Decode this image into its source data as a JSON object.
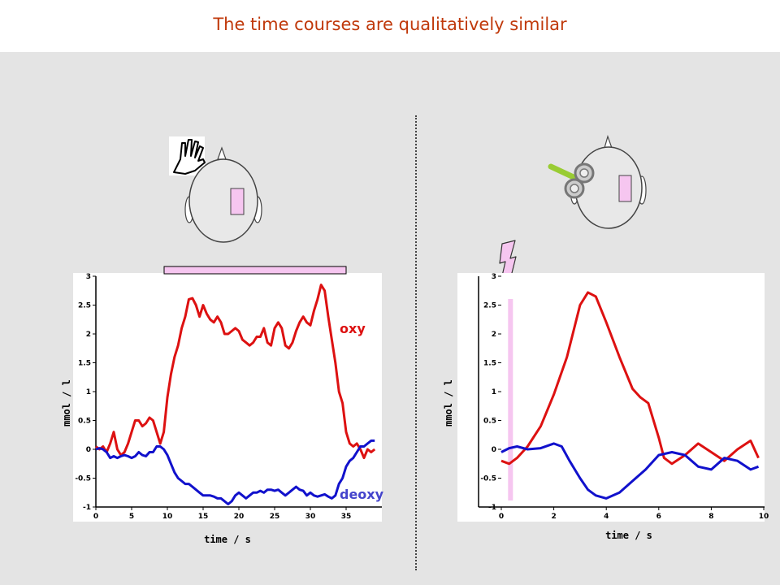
{
  "slide": {
    "title": "The time courses are qualitatively similar"
  },
  "colors": {
    "oxy": "#dd1111",
    "deoxy": "#1111cc",
    "stimulus": "#f6c6f0",
    "title": "#c0390b"
  },
  "icons": {
    "left": [
      "hand-icon",
      "head-icon",
      "brain-region-marker-icon"
    ],
    "right": [
      "tms-coil-icon",
      "head-icon",
      "brain-region-marker-icon",
      "lightning-icon"
    ]
  },
  "chart_data": [
    {
      "type": "line",
      "title": "",
      "xlabel": "time / s",
      "ylabel": "mmol / l",
      "xlim": [
        0,
        40
      ],
      "ylim": [
        -1,
        3
      ],
      "xticks": [
        0,
        5,
        10,
        15,
        20,
        25,
        30,
        35
      ],
      "yticks": [
        -1,
        -0.5,
        0,
        0.5,
        1,
        1.5,
        2,
        2.5,
        3
      ],
      "stimulus_interval": [
        10,
        35
      ],
      "series": [
        {
          "name": "oxy",
          "x": [
            0,
            0.5,
            1,
            1.5,
            2,
            2.5,
            3,
            3.5,
            4,
            4.5,
            5,
            5.5,
            6,
            6.5,
            7,
            7.5,
            8,
            8.5,
            9,
            9.5,
            10,
            10.5,
            11,
            11.5,
            12,
            12.5,
            13,
            13.5,
            14,
            14.5,
            15,
            15.5,
            16,
            16.5,
            17,
            17.5,
            18,
            18.5,
            19,
            19.5,
            20,
            20.5,
            21,
            21.5,
            22,
            22.5,
            23,
            23.5,
            24,
            24.5,
            25,
            25.5,
            26,
            26.5,
            27,
            27.5,
            28,
            28.5,
            29,
            29.5,
            30,
            30.5,
            31,
            31.5,
            32,
            32.5,
            33,
            33.5,
            34,
            34.5,
            35,
            35.5,
            36,
            36.5,
            37,
            37.5,
            38,
            38.5,
            39
          ],
          "values": [
            0.05,
            0.0,
            0.05,
            -0.05,
            0.1,
            0.3,
            0.0,
            -0.1,
            -0.05,
            0.1,
            0.3,
            0.5,
            0.5,
            0.4,
            0.45,
            0.55,
            0.5,
            0.3,
            0.1,
            0.3,
            0.9,
            1.3,
            1.6,
            1.8,
            2.1,
            2.3,
            2.6,
            2.62,
            2.5,
            2.3,
            2.5,
            2.35,
            2.25,
            2.2,
            2.3,
            2.2,
            2.0,
            2.0,
            2.05,
            2.1,
            2.05,
            1.9,
            1.85,
            1.8,
            1.85,
            1.95,
            1.95,
            2.1,
            1.85,
            1.8,
            2.1,
            2.2,
            2.1,
            1.8,
            1.75,
            1.85,
            2.05,
            2.2,
            2.3,
            2.2,
            2.15,
            2.4,
            2.6,
            2.85,
            2.75,
            2.3,
            1.9,
            1.5,
            1.0,
            0.8,
            0.3,
            0.1,
            0.05,
            0.1,
            0.0,
            -0.15,
            0.0,
            -0.05,
            0.0
          ]
        },
        {
          "name": "deoxy",
          "x": [
            0,
            0.5,
            1,
            1.5,
            2,
            2.5,
            3,
            3.5,
            4,
            4.5,
            5,
            5.5,
            6,
            6.5,
            7,
            7.5,
            8,
            8.5,
            9,
            9.5,
            10,
            10.5,
            11,
            11.5,
            12,
            12.5,
            13,
            13.5,
            14,
            14.5,
            15,
            15.5,
            16,
            16.5,
            17,
            17.5,
            18,
            18.5,
            19,
            19.5,
            20,
            20.5,
            21,
            21.5,
            22,
            22.5,
            23,
            23.5,
            24,
            24.5,
            25,
            25.5,
            26,
            26.5,
            27,
            27.5,
            28,
            28.5,
            29,
            29.5,
            30,
            30.5,
            31,
            31.5,
            32,
            32.5,
            33,
            33.5,
            34,
            34.5,
            35,
            35.5,
            36,
            36.5,
            37,
            37.5,
            38,
            38.5,
            39
          ],
          "values": [
            0.0,
            0.02,
            0.0,
            -0.05,
            -0.15,
            -0.12,
            -0.15,
            -0.12,
            -0.1,
            -0.12,
            -0.15,
            -0.12,
            -0.05,
            -0.1,
            -0.12,
            -0.05,
            -0.05,
            0.05,
            0.05,
            0.0,
            -0.1,
            -0.25,
            -0.4,
            -0.5,
            -0.55,
            -0.6,
            -0.6,
            -0.65,
            -0.7,
            -0.75,
            -0.8,
            -0.8,
            -0.8,
            -0.82,
            -0.85,
            -0.85,
            -0.9,
            -0.95,
            -0.9,
            -0.8,
            -0.75,
            -0.8,
            -0.85,
            -0.8,
            -0.75,
            -0.75,
            -0.72,
            -0.75,
            -0.7,
            -0.7,
            -0.72,
            -0.7,
            -0.75,
            -0.8,
            -0.75,
            -0.7,
            -0.65,
            -0.7,
            -0.72,
            -0.8,
            -0.75,
            -0.8,
            -0.82,
            -0.8,
            -0.78,
            -0.82,
            -0.85,
            -0.8,
            -0.6,
            -0.5,
            -0.3,
            -0.2,
            -0.15,
            -0.05,
            0.05,
            0.05,
            0.1,
            0.15,
            0.15
          ]
        }
      ]
    },
    {
      "type": "line",
      "title": "",
      "xlabel": "time / s",
      "ylabel": "mmol / l",
      "xlim": [
        0,
        10
      ],
      "ylim": [
        -1,
        3
      ],
      "xticks": [
        0,
        2,
        4,
        6,
        8,
        10
      ],
      "yticks": [
        -1,
        -0.5,
        0,
        0.5,
        1,
        1.5,
        2,
        2.5,
        3
      ],
      "stimulus_time": 0.35,
      "series": [
        {
          "name": "oxy",
          "x": [
            0,
            0.3,
            0.6,
            1.0,
            1.5,
            2.0,
            2.5,
            3.0,
            3.3,
            3.6,
            4.0,
            4.5,
            5.0,
            5.3,
            5.6,
            6.0,
            6.2,
            6.5,
            7.0,
            7.5,
            8.0,
            8.5,
            9.0,
            9.5,
            9.8
          ],
          "values": [
            -0.2,
            -0.25,
            -0.15,
            0.05,
            0.4,
            0.95,
            1.6,
            2.5,
            2.72,
            2.65,
            2.2,
            1.6,
            1.05,
            0.9,
            0.8,
            0.2,
            -0.15,
            -0.25,
            -0.1,
            0.1,
            -0.05,
            -0.2,
            0.0,
            0.15,
            -0.15
          ]
        },
        {
          "name": "deoxy",
          "x": [
            0,
            0.3,
            0.6,
            1.0,
            1.5,
            2.0,
            2.3,
            2.6,
            3.0,
            3.3,
            3.6,
            4.0,
            4.5,
            5.0,
            5.5,
            6.0,
            6.5,
            7.0,
            7.5,
            8.0,
            8.5,
            9.0,
            9.5,
            9.8
          ],
          "values": [
            -0.05,
            0.02,
            0.05,
            0.0,
            0.02,
            0.1,
            0.05,
            -0.2,
            -0.5,
            -0.7,
            -0.8,
            -0.85,
            -0.75,
            -0.55,
            -0.35,
            -0.1,
            -0.05,
            -0.1,
            -0.3,
            -0.35,
            -0.15,
            -0.2,
            -0.35,
            -0.3
          ]
        }
      ]
    }
  ]
}
